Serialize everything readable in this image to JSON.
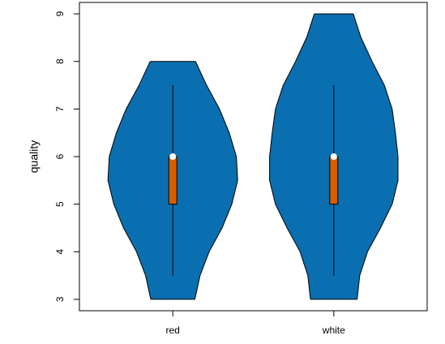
{
  "chart_data": {
    "type": "violin",
    "y_label": "quality",
    "categories": [
      "red",
      "white"
    ],
    "ylim": [
      2.76,
      9.24
    ],
    "yticks": [
      3,
      4,
      5,
      6,
      7,
      8,
      9
    ],
    "xlim": [
      0.42,
      2.58
    ],
    "violin_color": "#0a6fb0",
    "box_color": "#d55e00",
    "series": [
      {
        "min": 3,
        "max": 8,
        "q1": 5,
        "median": 6,
        "q3": 6,
        "whisker_low": 3.5,
        "whisker_high": 7.5,
        "density_y": [
          3,
          3.5,
          4,
          4.5,
          5,
          5.5,
          6,
          6.5,
          7,
          7.5,
          8
        ],
        "density": [
          0.34,
          0.42,
          0.56,
          0.76,
          0.91,
          1.0,
          0.98,
          0.87,
          0.72,
          0.52,
          0.35
        ]
      },
      {
        "min": 3,
        "max": 9,
        "q1": 5,
        "median": 6,
        "q3": 6,
        "whisker_low": 3.5,
        "whisker_high": 7.5,
        "density_y": [
          3,
          3.5,
          4,
          4.5,
          5,
          5.5,
          6,
          6.5,
          7,
          7.5,
          8,
          8.5,
          9
        ],
        "density": [
          0.36,
          0.4,
          0.52,
          0.72,
          0.9,
          0.99,
          0.99,
          0.95,
          0.9,
          0.78,
          0.59,
          0.42,
          0.3
        ]
      }
    ]
  }
}
